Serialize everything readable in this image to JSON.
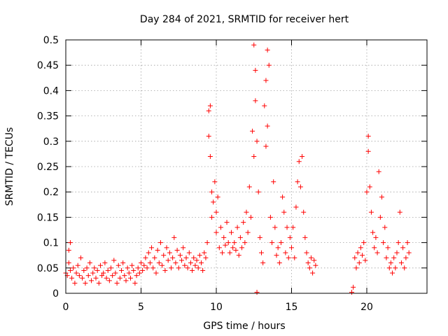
{
  "chart_data": {
    "type": "scatter",
    "title": "Day 284 of 2021, SRMTID for receiver hert",
    "xlabel": "GPS time / hours",
    "ylabel": "SRMTID / TECUs",
    "xlim": [
      0,
      24.0
    ],
    "ylim": [
      0,
      0.5
    ],
    "x_ticks": [
      "0",
      "5",
      "10",
      "15",
      "20"
    ],
    "y_ticks": [
      "0",
      "0.05",
      "0.1",
      "0.15",
      "0.2",
      "0.25",
      "0.3",
      "0.35",
      "0.4",
      "0.45",
      "0.5"
    ],
    "grid": true,
    "marker": "+",
    "color": "#ff0000",
    "series": [
      {
        "name": "SRMTID",
        "points": [
          [
            0.0,
            0.04
          ],
          [
            0.1,
            0.035
          ],
          [
            0.2,
            0.06
          ],
          [
            0.2,
            0.085
          ],
          [
            0.3,
            0.1
          ],
          [
            0.3,
            0.045
          ],
          [
            0.4,
            0.03
          ],
          [
            0.5,
            0.05
          ],
          [
            0.6,
            0.02
          ],
          [
            0.7,
            0.04
          ],
          [
            0.8,
            0.055
          ],
          [
            0.9,
            0.035
          ],
          [
            1.0,
            0.07
          ],
          [
            1.1,
            0.03
          ],
          [
            1.2,
            0.045
          ],
          [
            1.3,
            0.02
          ],
          [
            1.4,
            0.05
          ],
          [
            1.5,
            0.035
          ],
          [
            1.6,
            0.06
          ],
          [
            1.7,
            0.025
          ],
          [
            1.8,
            0.04
          ],
          [
            1.9,
            0.05
          ],
          [
            2.0,
            0.03
          ],
          [
            2.1,
            0.045
          ],
          [
            2.2,
            0.02
          ],
          [
            2.3,
            0.055
          ],
          [
            2.4,
            0.035
          ],
          [
            2.5,
            0.04
          ],
          [
            2.6,
            0.06
          ],
          [
            2.7,
            0.03
          ],
          [
            2.8,
            0.045
          ],
          [
            2.9,
            0.025
          ],
          [
            3.0,
            0.05
          ],
          [
            3.1,
            0.035
          ],
          [
            3.2,
            0.065
          ],
          [
            3.3,
            0.04
          ],
          [
            3.4,
            0.02
          ],
          [
            3.5,
            0.055
          ],
          [
            3.6,
            0.03
          ],
          [
            3.7,
            0.045
          ],
          [
            3.8,
            0.06
          ],
          [
            3.9,
            0.035
          ],
          [
            4.0,
            0.025
          ],
          [
            4.1,
            0.05
          ],
          [
            4.2,
            0.04
          ],
          [
            4.3,
            0.03
          ],
          [
            4.4,
            0.055
          ],
          [
            4.5,
            0.045
          ],
          [
            4.6,
            0.02
          ],
          [
            4.7,
            0.035
          ],
          [
            4.8,
            0.05
          ],
          [
            4.9,
            0.04
          ],
          [
            5.0,
            0.06
          ],
          [
            5.1,
            0.045
          ],
          [
            5.2,
            0.055
          ],
          [
            5.3,
            0.07
          ],
          [
            5.4,
            0.05
          ],
          [
            5.5,
            0.08
          ],
          [
            5.6,
            0.06
          ],
          [
            5.7,
            0.09
          ],
          [
            5.8,
            0.05
          ],
          [
            5.9,
            0.07
          ],
          [
            6.0,
            0.04
          ],
          [
            6.1,
            0.085
          ],
          [
            6.2,
            0.06
          ],
          [
            6.3,
            0.1
          ],
          [
            6.4,
            0.055
          ],
          [
            6.5,
            0.075
          ],
          [
            6.6,
            0.045
          ],
          [
            6.7,
            0.09
          ],
          [
            6.8,
            0.065
          ],
          [
            6.9,
            0.08
          ],
          [
            7.0,
            0.05
          ],
          [
            7.1,
            0.07
          ],
          [
            7.2,
            0.11
          ],
          [
            7.3,
            0.06
          ],
          [
            7.4,
            0.085
          ],
          [
            7.5,
            0.05
          ],
          [
            7.6,
            0.075
          ],
          [
            7.7,
            0.065
          ],
          [
            7.8,
            0.09
          ],
          [
            7.9,
            0.055
          ],
          [
            8.0,
            0.07
          ],
          [
            8.1,
            0.05
          ],
          [
            8.2,
            0.08
          ],
          [
            8.3,
            0.06
          ],
          [
            8.4,
            0.045
          ],
          [
            8.5,
            0.07
          ],
          [
            8.6,
            0.055
          ],
          [
            8.7,
            0.065
          ],
          [
            8.8,
            0.05
          ],
          [
            8.9,
            0.075
          ],
          [
            9.0,
            0.06
          ],
          [
            9.1,
            0.045
          ],
          [
            9.2,
            0.08
          ],
          [
            9.3,
            0.07
          ],
          [
            9.4,
            0.1
          ],
          [
            9.5,
            0.36
          ],
          [
            9.5,
            0.31
          ],
          [
            9.6,
            0.37
          ],
          [
            9.6,
            0.27
          ],
          [
            9.7,
            0.2
          ],
          [
            9.7,
            0.15
          ],
          [
            9.8,
            0.18
          ],
          [
            9.9,
            0.22
          ],
          [
            10.0,
            0.16
          ],
          [
            10.0,
            0.12
          ],
          [
            10.1,
            0.19
          ],
          [
            10.2,
            0.09
          ],
          [
            10.3,
            0.13
          ],
          [
            10.4,
            0.08
          ],
          [
            10.5,
            0.11
          ],
          [
            10.6,
            0.095
          ],
          [
            10.7,
            0.14
          ],
          [
            10.8,
            0.1
          ],
          [
            10.9,
            0.08
          ],
          [
            11.0,
            0.12
          ],
          [
            11.1,
            0.09
          ],
          [
            11.2,
            0.1
          ],
          [
            11.3,
            0.085
          ],
          [
            11.4,
            0.13
          ],
          [
            11.5,
            0.075
          ],
          [
            11.6,
            0.11
          ],
          [
            11.7,
            0.09
          ],
          [
            11.8,
            0.14
          ],
          [
            11.9,
            0.1
          ],
          [
            12.0,
            0.16
          ],
          [
            12.1,
            0.12
          ],
          [
            12.2,
            0.21
          ],
          [
            12.3,
            0.15
          ],
          [
            12.4,
            0.32
          ],
          [
            12.5,
            0.27
          ],
          [
            12.5,
            0.49
          ],
          [
            12.6,
            0.44
          ],
          [
            12.6,
            0.38
          ],
          [
            12.7,
            0.3
          ],
          [
            12.8,
            0.2
          ],
          [
            12.9,
            0.11
          ],
          [
            13.0,
            0.08
          ],
          [
            13.1,
            0.06
          ],
          [
            13.2,
            0.37
          ],
          [
            13.3,
            0.42
          ],
          [
            13.3,
            0.29
          ],
          [
            13.4,
            0.48
          ],
          [
            13.4,
            0.33
          ],
          [
            13.5,
            0.45
          ],
          [
            13.6,
            0.15
          ],
          [
            13.7,
            0.1
          ],
          [
            13.8,
            0.22
          ],
          [
            13.9,
            0.13
          ],
          [
            14.0,
            0.075
          ],
          [
            14.1,
            0.09
          ],
          [
            14.2,
            0.06
          ],
          [
            14.3,
            0.1
          ],
          [
            14.4,
            0.19
          ],
          [
            14.5,
            0.16
          ],
          [
            14.6,
            0.08
          ],
          [
            14.7,
            0.13
          ],
          [
            14.8,
            0.07
          ],
          [
            14.9,
            0.11
          ],
          [
            15.0,
            0.09
          ],
          [
            15.1,
            0.13
          ],
          [
            15.2,
            0.07
          ],
          [
            15.3,
            0.17
          ],
          [
            15.4,
            0.22
          ],
          [
            15.5,
            0.26
          ],
          [
            15.6,
            0.21
          ],
          [
            15.7,
            0.27
          ],
          [
            15.8,
            0.16
          ],
          [
            15.9,
            0.11
          ],
          [
            16.0,
            0.08
          ],
          [
            16.1,
            0.06
          ],
          [
            16.2,
            0.05
          ],
          [
            16.3,
            0.07
          ],
          [
            16.4,
            0.04
          ],
          [
            16.5,
            0.065
          ],
          [
            16.6,
            0.055
          ],
          [
            12.7,
            0.002
          ],
          [
            19.0,
            0.002
          ],
          [
            19.1,
            0.012
          ],
          [
            19.2,
            0.07
          ],
          [
            19.3,
            0.05
          ],
          [
            19.4,
            0.08
          ],
          [
            19.5,
            0.06
          ],
          [
            19.6,
            0.09
          ],
          [
            19.7,
            0.075
          ],
          [
            19.8,
            0.1
          ],
          [
            19.9,
            0.065
          ],
          [
            20.0,
            0.2
          ],
          [
            20.1,
            0.31
          ],
          [
            20.1,
            0.28
          ],
          [
            20.2,
            0.21
          ],
          [
            20.3,
            0.16
          ],
          [
            20.4,
            0.12
          ],
          [
            20.5,
            0.09
          ],
          [
            20.6,
            0.11
          ],
          [
            20.7,
            0.08
          ],
          [
            20.8,
            0.24
          ],
          [
            20.9,
            0.15
          ],
          [
            21.0,
            0.19
          ],
          [
            21.1,
            0.1
          ],
          [
            21.2,
            0.13
          ],
          [
            21.3,
            0.07
          ],
          [
            21.4,
            0.09
          ],
          [
            21.5,
            0.05
          ],
          [
            21.6,
            0.06
          ],
          [
            21.7,
            0.04
          ],
          [
            21.8,
            0.07
          ],
          [
            21.9,
            0.05
          ],
          [
            22.0,
            0.08
          ],
          [
            22.1,
            0.1
          ],
          [
            22.2,
            0.16
          ],
          [
            22.3,
            0.06
          ],
          [
            22.4,
            0.09
          ],
          [
            22.5,
            0.05
          ],
          [
            22.6,
            0.07
          ],
          [
            22.7,
            0.1
          ],
          [
            22.8,
            0.08
          ]
        ]
      }
    ]
  }
}
